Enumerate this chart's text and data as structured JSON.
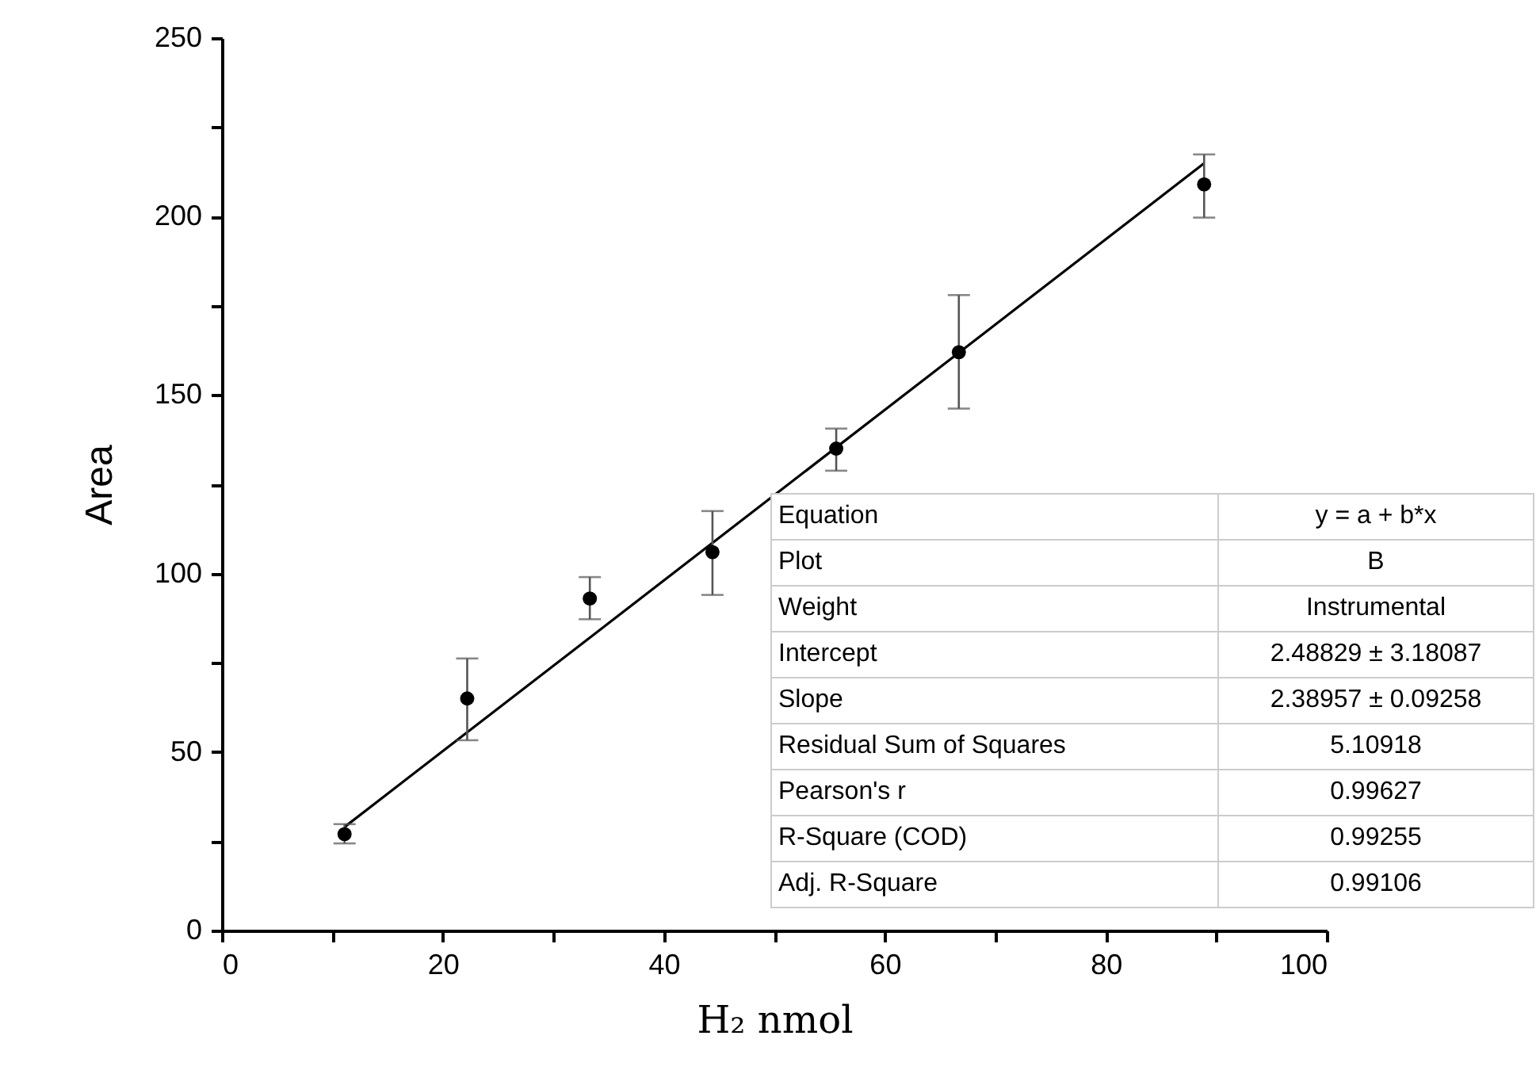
{
  "chart_data": {
    "type": "scatter",
    "xlabel": "H₂ nmol",
    "ylabel": "Area",
    "xlim": [
      0,
      100
    ],
    "xticks": [
      0,
      {
        "value": 10,
        "label": null
      },
      20,
      {
        "value": 30,
        "label": null
      },
      40,
      {
        "value": 50,
        "label": null
      },
      60,
      {
        "value": 70,
        "label": null
      },
      80,
      {
        "value": 90,
        "label": null
      },
      100
    ],
    "ylim": [
      0,
      250
    ],
    "yticks": [
      0,
      {
        "value": 25,
        "label": null
      },
      50,
      {
        "value": 75,
        "label": null
      },
      100,
      {
        "value": 125,
        "label": null
      },
      150,
      {
        "value": 175,
        "label": null
      },
      200,
      {
        "value": 225,
        "label": null
      },
      250
    ],
    "grid": false,
    "series": [
      {
        "marker": "circle",
        "color": "#000000",
        "x": [
          11.1,
          22.2,
          33.3,
          44.4,
          55.6,
          66.7,
          88.9
        ],
        "values": [
          27,
          65,
          93,
          106,
          135,
          162,
          209
        ],
        "errors": [
          [
            24.4,
            29.8
          ],
          [
            53.3,
            76.2
          ],
          [
            87.2,
            99
          ],
          [
            94,
            117.5
          ],
          [
            128.8,
            140.6
          ],
          [
            146.2,
            178
          ],
          [
            199.7,
            217.4
          ]
        ]
      },
      {
        "type": "line",
        "color": "#000000",
        "line_style": "solid",
        "x": [
          11.1,
          88.9
        ],
        "values": [
          29.0,
          214.9
        ]
      }
    ],
    "annotations": [
      "Equation",
      "y = a + b*x",
      "Plot",
      "B",
      "Weight",
      "Instrumental",
      "Intercept",
      "2.48829 ± 3.18087",
      "Slope",
      "2.38957 ± 0.09258",
      "Residual Sum of Squares",
      "5.10918",
      "Pearson's r",
      "0.99627",
      "R-Square (COD)",
      "0.99255",
      "Adj. R-Square",
      "0.99106"
    ]
  }
}
